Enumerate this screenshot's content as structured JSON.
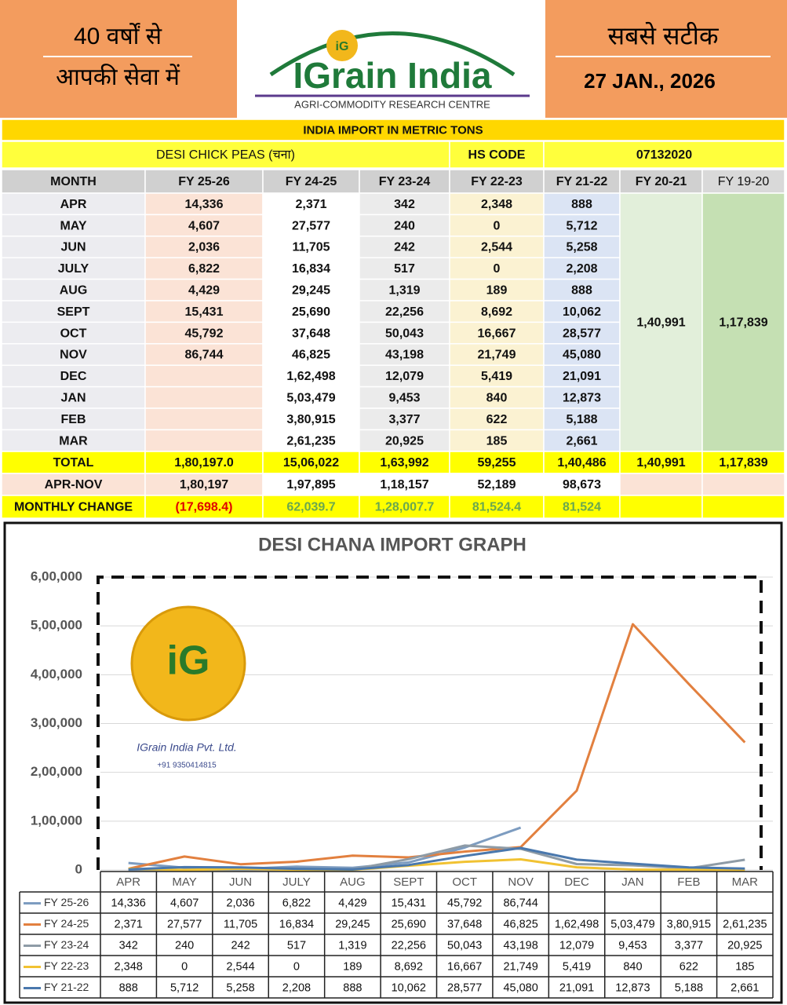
{
  "header": {
    "left_lines": [
      "40 वर्षों से",
      "आपकी सेवा में"
    ],
    "logo": {
      "mark": "iG",
      "brand": "IGrain India",
      "subtitle": "AGRI-COMMODITY RESEARCH CENTRE"
    },
    "right_title": "सबसे सटीक",
    "date": "27 JAN., 2026"
  },
  "table": {
    "title": "INDIA IMPORT IN METRIC TONS",
    "product": "DESI CHICK PEAS (चना)",
    "hs_label": "HS CODE",
    "hs_code": "07132020",
    "columns": [
      "MONTH",
      "FY 25-26",
      "FY 24-25",
      "FY 23-24",
      "FY 22-23",
      "FY 21-22",
      "FY 20-21",
      "FY 19-20"
    ],
    "rows": [
      [
        "APR",
        "14,336",
        "2,371",
        "342",
        "2,348",
        "888"
      ],
      [
        "MAY",
        "4,607",
        "27,577",
        "240",
        "0",
        "5,712"
      ],
      [
        "JUN",
        "2,036",
        "11,705",
        "242",
        "2,544",
        "5,258"
      ],
      [
        "JULY",
        "6,822",
        "16,834",
        "517",
        "0",
        "2,208"
      ],
      [
        "AUG",
        "4,429",
        "29,245",
        "1,319",
        "189",
        "888"
      ],
      [
        "SEPT",
        "15,431",
        "25,690",
        "22,256",
        "8,692",
        "10,062"
      ],
      [
        "OCT",
        "45,792",
        "37,648",
        "50,043",
        "16,667",
        "28,577"
      ],
      [
        "NOV",
        "86,744",
        "46,825",
        "43,198",
        "21,749",
        "45,080"
      ],
      [
        "DEC",
        null,
        "1,62,498",
        "12,079",
        "5,419",
        "21,091"
      ],
      [
        "JAN",
        null,
        "5,03,479",
        "9,453",
        "840",
        "12,873"
      ],
      [
        "FEB",
        null,
        "3,80,915",
        "3,377",
        "622",
        "5,188"
      ],
      [
        "MAR",
        null,
        "2,61,235",
        "20,925",
        "185",
        "2,661"
      ]
    ],
    "merged": [
      "1,40,991",
      "1,17,839"
    ],
    "total": [
      "TOTAL",
      "1,80,197.0",
      "15,06,022",
      "1,63,992",
      "59,255",
      "1,40,486",
      "1,40,991",
      "1,17,839"
    ],
    "apr_nov": [
      "APR-NOV",
      "1,80,197",
      "1,97,895",
      "1,18,157",
      "52,189",
      "98,673"
    ],
    "monthly_change": [
      "MONTHLY CHANGE",
      "(17,698.4)",
      "62,039.7",
      "1,28,007.7",
      "81,524.4",
      "81,524"
    ]
  },
  "watermark": {
    "company": "IGrain India Pvt. Ltd.",
    "phone": "+91 9350414815"
  },
  "chart_data": {
    "type": "line",
    "title": "DESI CHANA IMPORT GRAPH",
    "categories": [
      "APR",
      "MAY",
      "JUN",
      "JULY",
      "AUG",
      "SEPT",
      "OCT",
      "NOV",
      "DEC",
      "JAN",
      "FEB",
      "MAR"
    ],
    "ylim": [
      0,
      600000
    ],
    "yticks": [
      0,
      {
        "value": 100000,
        "label": "1,00,000"
      },
      {
        "value": 200000,
        "label": "2,00,000"
      },
      {
        "value": 300000,
        "label": "3,00,000"
      },
      {
        "value": 400000,
        "label": "4,00,000"
      },
      {
        "value": 500000,
        "label": "5,00,000"
      },
      {
        "value": 600000,
        "label": "6,00,000"
      }
    ],
    "grid": true,
    "series": [
      {
        "name": "FY 25-26",
        "color": "#7d9cc0",
        "values": [
          14336,
          4607,
          2036,
          6822,
          4429,
          15431,
          45792,
          86744,
          null,
          null,
          null,
          null
        ],
        "value_labels": [
          "14,336",
          "4,607",
          "2,036",
          "6,822",
          "4,429",
          "15,431",
          "45,792",
          "86,744",
          null,
          null,
          null,
          null
        ]
      },
      {
        "name": "FY 24-25",
        "color": "#e2803f",
        "values": [
          2371,
          27577,
          11705,
          16834,
          29245,
          25690,
          37648,
          46825,
          162498,
          503479,
          380915,
          261235
        ],
        "value_labels": [
          "2,371",
          "27,577",
          "11,705",
          "16,834",
          "29,245",
          "25,690",
          "37,648",
          "46,825",
          "1,62,498",
          "5,03,479",
          "3,80,915",
          "2,61,235"
        ]
      },
      {
        "name": "FY 23-24",
        "color": "#8e9ba6",
        "values": [
          342,
          240,
          242,
          517,
          1319,
          22256,
          50043,
          43198,
          12079,
          9453,
          3377,
          20925
        ],
        "value_labels": [
          "342",
          "240",
          "242",
          "517",
          "1,319",
          "22,256",
          "50,043",
          "43,198",
          "12,079",
          "9,453",
          "3,377",
          "20,925"
        ]
      },
      {
        "name": "FY 22-23",
        "color": "#f1c232",
        "values": [
          2348,
          0,
          2544,
          0,
          189,
          8692,
          16667,
          21749,
          5419,
          840,
          622,
          185
        ],
        "value_labels": [
          "2,348",
          "0",
          "2,544",
          "0",
          "189",
          "8,692",
          "16,667",
          "21,749",
          "5,419",
          "840",
          "622",
          "185"
        ]
      },
      {
        "name": "FY 21-22",
        "color": "#4a78ad",
        "values": [
          888,
          5712,
          5258,
          2208,
          888,
          10062,
          28577,
          45080,
          21091,
          12873,
          5188,
          2661
        ],
        "value_labels": [
          "888",
          "5,712",
          "5,258",
          "2,208",
          "888",
          "10,062",
          "28,577",
          "45,080",
          "21,091",
          "12,873",
          "5,188",
          "2,661"
        ]
      }
    ]
  }
}
